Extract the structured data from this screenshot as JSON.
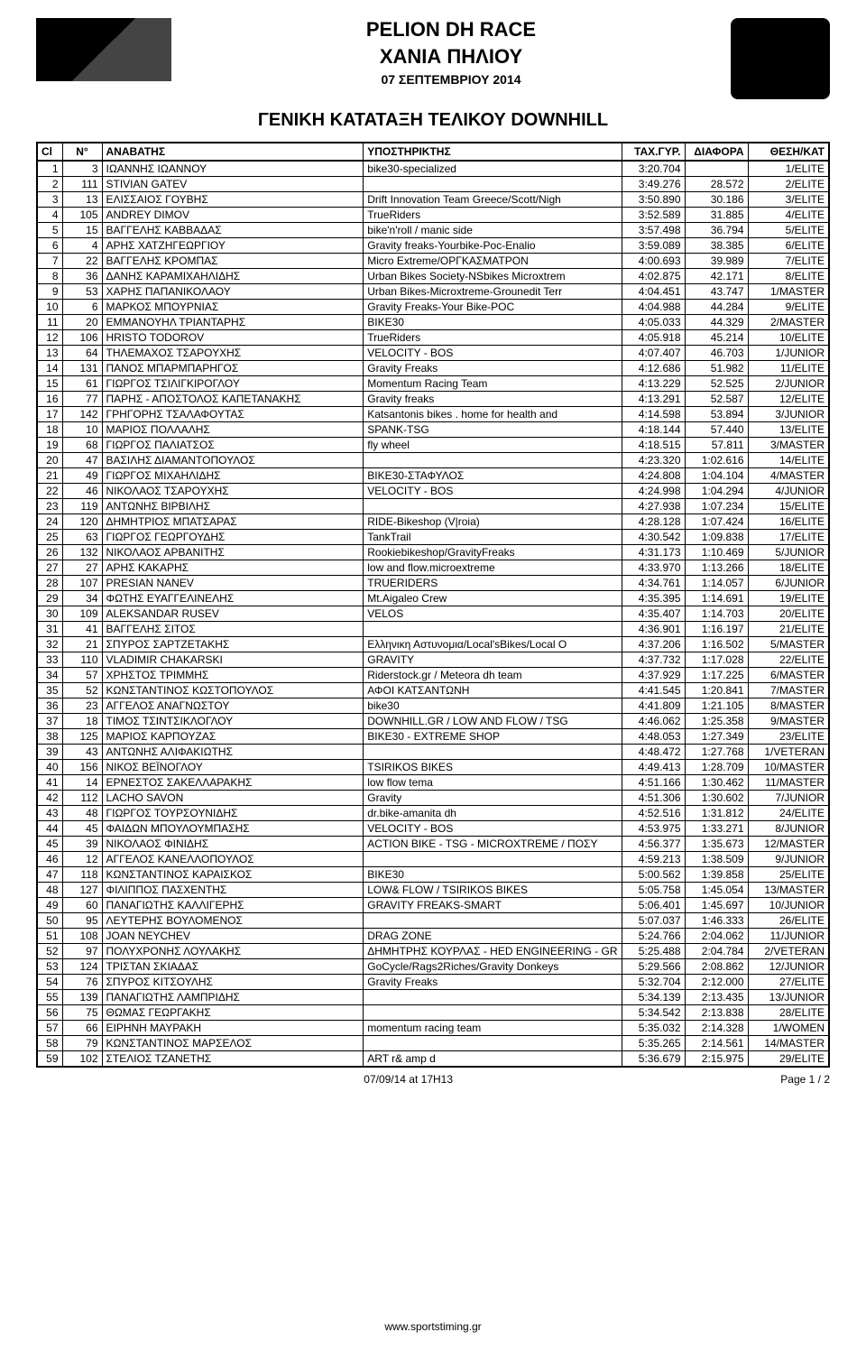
{
  "header": {
    "title1": "PELION DH RACE",
    "title2": "ΧΑΝΙΑ ΠΗΛΙΟΥ",
    "date": "07  ΣΕΠΤΕΜΒΡΙΟΥ 2014",
    "subtitle": "ΓΕΝΙΚΗ ΚΑΤΑΤΑΞΗ ΤΕΛΙΚΟΥ DOWNHILL"
  },
  "columns": {
    "cl": "Cl",
    "no": "N°",
    "rider": "ΑΝΑΒΑΤΗΣ",
    "team": "ΥΠΟΣΤΗΡΙΚΤΗΣ",
    "time": "TAX.ΓΥΡ.",
    "gap": "ΔΙΑΦΟΡΑ",
    "cat": "ΘΕΣΗ/ΚΑΤ"
  },
  "rows": [
    {
      "cl": "1",
      "no": "3",
      "rider": "ΙΩΑΝΝΗΣ ΙΩΑΝΝΟΥ",
      "team": "bike30-specialized",
      "time": "3:20.704",
      "gap": "",
      "cat": "1/ELITE"
    },
    {
      "cl": "2",
      "no": "111",
      "rider": "STIVIAN GATEV",
      "team": "",
      "time": "3:49.276",
      "gap": "28.572",
      "cat": "2/ELITE"
    },
    {
      "cl": "3",
      "no": "13",
      "rider": "ΕΛΙΣΣΑΙΟΣ ΓΟΥΒΗΣ",
      "team": "Drift Innovation Team Greece/Scott/Nigh",
      "time": "3:50.890",
      "gap": "30.186",
      "cat": "3/ELITE"
    },
    {
      "cl": "4",
      "no": "105",
      "rider": "ANDREY DIMOV",
      "team": "TrueRiders",
      "time": "3:52.589",
      "gap": "31.885",
      "cat": "4/ELITE"
    },
    {
      "cl": "5",
      "no": "15",
      "rider": "ΒΑΓΓΕΛΗΣ ΚΑΒΒΑΔΑΣ",
      "team": "bike'n'roll / manic side",
      "time": "3:57.498",
      "gap": "36.794",
      "cat": "5/ELITE"
    },
    {
      "cl": "6",
      "no": "4",
      "rider": "ΑΡΗΣ ΧΑΤΖΗΓΕΩΡΓΙΟΥ",
      "team": "Gravity freaks-Yourbike-Poc-Enalio",
      "time": "3:59.089",
      "gap": "38.385",
      "cat": "6/ELITE"
    },
    {
      "cl": "7",
      "no": "22",
      "rider": "ΒΑΓΓΕΛΗΣ ΚΡΟΜΠΑΣ",
      "team": "Micro Extreme/ΟΡΓΚΑΣΜΑΤΡΟΝ",
      "time": "4:00.693",
      "gap": "39.989",
      "cat": "7/ELITE"
    },
    {
      "cl": "8",
      "no": "36",
      "rider": "ΔΑΝΗΣ ΚΑΡΑΜΙΧΑΗΛΙΔΗΣ",
      "team": "Urban Bikes Society-NSbikes Microxtrem",
      "time": "4:02.875",
      "gap": "42.171",
      "cat": "8/ELITE"
    },
    {
      "cl": "9",
      "no": "53",
      "rider": "ΧΑΡΗΣ ΠΑΠΑΝΙΚΟΛΑΟΥ",
      "team": "Urban Bikes-Microxtreme-Grounedit Terr",
      "time": "4:04.451",
      "gap": "43.747",
      "cat": "1/MASTER"
    },
    {
      "cl": "10",
      "no": "6",
      "rider": "ΜΑΡΚΟΣ ΜΠΟΥΡΝΙΑΣ",
      "team": "Gravity Freaks-Your Bike-POC",
      "time": "4:04.988",
      "gap": "44.284",
      "cat": "9/ELITE"
    },
    {
      "cl": "11",
      "no": "20",
      "rider": "ΕΜΜΑΝΟΥΗΛ ΤΡΙΑΝΤΑΡΗΣ",
      "team": "BIKE30",
      "time": "4:05.033",
      "gap": "44.329",
      "cat": "2/MASTER"
    },
    {
      "cl": "12",
      "no": "106",
      "rider": "HRISTO TODOROV",
      "team": "TrueRiders",
      "time": "4:05.918",
      "gap": "45.214",
      "cat": "10/ELITE"
    },
    {
      "cl": "13",
      "no": "64",
      "rider": "ΤΗΛΕΜΑΧΟΣ ΤΣΑΡΟΥΧΗΣ",
      "team": "VELOCITY - BOS",
      "time": "4:07.407",
      "gap": "46.703",
      "cat": "1/JUNIOR"
    },
    {
      "cl": "14",
      "no": "131",
      "rider": "ΠΑΝΟΣ ΜΠΑΡΜΠΑΡΗΓΟΣ",
      "team": "Gravity Freaks",
      "time": "4:12.686",
      "gap": "51.982",
      "cat": "11/ELITE"
    },
    {
      "cl": "15",
      "no": "61",
      "rider": "ΓΙΩΡΓΟΣ ΤΣΙΛΙΓΚΙΡΟΓΛΟΥ",
      "team": "Momentum Racing Team",
      "time": "4:13.229",
      "gap": "52.525",
      "cat": "2/JUNIOR"
    },
    {
      "cl": "16",
      "no": "77",
      "rider": "ΠΑΡΗΣ - ΑΠΟΣΤΟΛΟΣ ΚΑΠΕΤΑΝΑΚΗΣ",
      "team": "Gravity freaks",
      "time": "4:13.291",
      "gap": "52.587",
      "cat": "12/ELITE"
    },
    {
      "cl": "17",
      "no": "142",
      "rider": "ΓΡΗΓΟΡΗΣ ΤΣΑΛΑΦΟΥΤΑΣ",
      "team": "Katsantonis bikes . home for health and",
      "time": "4:14.598",
      "gap": "53.894",
      "cat": "3/JUNIOR"
    },
    {
      "cl": "18",
      "no": "10",
      "rider": "ΜΑΡΙΟΣ ΠΟΛΛΑΛΗΣ",
      "team": "SPANK-TSG",
      "time": "4:18.144",
      "gap": "57.440",
      "cat": "13/ELITE"
    },
    {
      "cl": "19",
      "no": "68",
      "rider": "ΓΙΩΡΓΟΣ ΠΑΛΙΑΤΣΟΣ",
      "team": "fly wheel",
      "time": "4:18.515",
      "gap": "57.811",
      "cat": "3/MASTER"
    },
    {
      "cl": "20",
      "no": "47",
      "rider": "ΒΑΣΙΛΗΣ ΔΙΑΜΑΝΤΟΠΟΥΛΟΣ",
      "team": "",
      "time": "4:23.320",
      "gap": "1:02.616",
      "cat": "14/ELITE"
    },
    {
      "cl": "21",
      "no": "49",
      "rider": "ΓΙΩΡΓΟΣ ΜΙΧΑΗΛΙΔΗΣ",
      "team": "BIKE30-ΣΤΑΦΥΛΟΣ",
      "time": "4:24.808",
      "gap": "1:04.104",
      "cat": "4/MASTER"
    },
    {
      "cl": "22",
      "no": "46",
      "rider": "ΝΙΚΟΛΑΟΣ ΤΣΑΡΟΥΧΗΣ",
      "team": "VELOCITY - BOS",
      "time": "4:24.998",
      "gap": "1:04.294",
      "cat": "4/JUNIOR"
    },
    {
      "cl": "23",
      "no": "119",
      "rider": "ΑΝΤΩΝΗΣ ΒΙΡΒΙΛΗΣ",
      "team": "",
      "time": "4:27.938",
      "gap": "1:07.234",
      "cat": "15/ELITE"
    },
    {
      "cl": "24",
      "no": "120",
      "rider": "ΔΗΜΗΤΡΙΟΣ ΜΠΑΤΣΑΡΑΣ",
      "team": "RIDE-Bikeshop (V|roia)",
      "time": "4:28.128",
      "gap": "1:07.424",
      "cat": "16/ELITE"
    },
    {
      "cl": "25",
      "no": "63",
      "rider": "ΓΙΩΡΓΟΣ ΓΕΩΡΓΟΥΔΗΣ",
      "team": "TankTrail",
      "time": "4:30.542",
      "gap": "1:09.838",
      "cat": "17/ELITE"
    },
    {
      "cl": "26",
      "no": "132",
      "rider": "ΝΙΚΟΛΑΟΣ ΑΡΒΑΝΙΤΗΣ",
      "team": "Rookiebikeshop/GravityFreaks",
      "time": "4:31.173",
      "gap": "1:10.469",
      "cat": "5/JUNIOR"
    },
    {
      "cl": "27",
      "no": "27",
      "rider": "ΑΡΗΣ ΚΑΚΑΡΗΣ",
      "team": "low and flow.microextreme",
      "time": "4:33.970",
      "gap": "1:13.266",
      "cat": "18/ELITE"
    },
    {
      "cl": "28",
      "no": "107",
      "rider": "PRESIAN NANEV",
      "team": "TRUERIDERS",
      "time": "4:34.761",
      "gap": "1:14.057",
      "cat": "6/JUNIOR"
    },
    {
      "cl": "29",
      "no": "34",
      "rider": "ΦΩΤΗΣ ΕΥΑΓΓΕΛΙΝΕΛΗΣ",
      "team": "Mt.Aigaleo Crew",
      "time": "4:35.395",
      "gap": "1:14.691",
      "cat": "19/ELITE"
    },
    {
      "cl": "30",
      "no": "109",
      "rider": "ALEKSANDAR RUSEV",
      "team": "VELOS",
      "time": "4:35.407",
      "gap": "1:14.703",
      "cat": "20/ELITE"
    },
    {
      "cl": "31",
      "no": "41",
      "rider": "ΒΑΓΓΕΛΗΣ ΣΙΤΟΣ",
      "team": "",
      "time": "4:36.901",
      "gap": "1:16.197",
      "cat": "21/ELITE"
    },
    {
      "cl": "32",
      "no": "21",
      "rider": "ΣΠΥΡΟΣ ΣΑΡΤΖΕΤΑΚΗΣ",
      "team": "Ελληνικη Αστυνομια/Local'sBikes/Local O",
      "time": "4:37.206",
      "gap": "1:16.502",
      "cat": "5/MASTER"
    },
    {
      "cl": "33",
      "no": "110",
      "rider": "VLADIMIR CHAKARSKI",
      "team": "GRAVITY",
      "time": "4:37.732",
      "gap": "1:17.028",
      "cat": "22/ELITE"
    },
    {
      "cl": "34",
      "no": "57",
      "rider": "ΧΡΗΣΤΟΣ ΤΡΙΜΜΗΣ",
      "team": "Riderstock.gr / Meteora dh team",
      "time": "4:37.929",
      "gap": "1:17.225",
      "cat": "6/MASTER"
    },
    {
      "cl": "35",
      "no": "52",
      "rider": "ΚΩΝΣΤΑΝΤΙΝΟΣ ΚΩΣΤΟΠΟΥΛΟΣ",
      "team": "ΑΦΟΙ ΚΑΤΣΑΝΤΩΝΗ",
      "time": "4:41.545",
      "gap": "1:20.841",
      "cat": "7/MASTER"
    },
    {
      "cl": "36",
      "no": "23",
      "rider": "ΑΓΓΕΛΟΣ ΑΝΑΓΝΩΣΤΟΥ",
      "team": "bike30",
      "time": "4:41.809",
      "gap": "1:21.105",
      "cat": "8/MASTER"
    },
    {
      "cl": "37",
      "no": "18",
      "rider": "ΤΙΜΟΣ ΤΣΙΝΤΣΙΚΛΟΓΛΟΥ",
      "team": "DOWNHILL.GR / LOW AND FLOW / TSG",
      "time": "4:46.062",
      "gap": "1:25.358",
      "cat": "9/MASTER"
    },
    {
      "cl": "38",
      "no": "125",
      "rider": "ΜΑΡΙΟΣ ΚΑΡΠΟΥΖΑΣ",
      "team": "BIKE30 - EXTREME SHOP",
      "time": "4:48.053",
      "gap": "1:27.349",
      "cat": "23/ELITE"
    },
    {
      "cl": "39",
      "no": "43",
      "rider": "ΑΝΤΩΝΗΣ ΑΛΙΦΑΚΙΩΤΗΣ",
      "team": "",
      "time": "4:48.472",
      "gap": "1:27.768",
      "cat": "1/VETERAN"
    },
    {
      "cl": "40",
      "no": "156",
      "rider": "ΝΙΚΟΣ ΒΕΪΝΟΓΛΟΥ",
      "team": "TSIRIKOS BIKES",
      "time": "4:49.413",
      "gap": "1:28.709",
      "cat": "10/MASTER"
    },
    {
      "cl": "41",
      "no": "14",
      "rider": "ΕΡΝΕΣΤΟΣ ΣΑΚΕΛΛΑΡΑΚΗΣ",
      "team": "low flow tema",
      "time": "4:51.166",
      "gap": "1:30.462",
      "cat": "11/MASTER"
    },
    {
      "cl": "42",
      "no": "112",
      "rider": "LACHO SAVON",
      "team": "Gravity",
      "time": "4:51.306",
      "gap": "1:30.602",
      "cat": "7/JUNIOR"
    },
    {
      "cl": "43",
      "no": "48",
      "rider": "ΓΙΩΡΓΟΣ ΤΟΥΡΣΟΥΝΙΔΗΣ",
      "team": "dr.bike-amanita dh",
      "time": "4:52.516",
      "gap": "1:31.812",
      "cat": "24/ELITE"
    },
    {
      "cl": "44",
      "no": "45",
      "rider": "ΦΑΙΔΩΝ ΜΠΟΥΛΟΥΜΠΑΣΗΣ",
      "team": "VELOCITY - BOS",
      "time": "4:53.975",
      "gap": "1:33.271",
      "cat": "8/JUNIOR"
    },
    {
      "cl": "45",
      "no": "39",
      "rider": "ΝΙΚΟΛΑΟΣ ΦΙΝΙΔΗΣ",
      "team": "ACTION BIKE - TSG - MICROXTREME / ΠΟΣΥ",
      "time": "4:56.377",
      "gap": "1:35.673",
      "cat": "12/MASTER"
    },
    {
      "cl": "46",
      "no": "12",
      "rider": "ΑΓΓΕΛΟΣ ΚΑΝΕΛΛΟΠΟΥΛΟΣ",
      "team": "",
      "time": "4:59.213",
      "gap": "1:38.509",
      "cat": "9/JUNIOR"
    },
    {
      "cl": "47",
      "no": "118",
      "rider": "ΚΩΝΣΤΑΝΤΙΝΟΣ ΚΑΡΑΙΣΚΟΣ",
      "team": "BIKE30",
      "time": "5:00.562",
      "gap": "1:39.858",
      "cat": "25/ELITE"
    },
    {
      "cl": "48",
      "no": "127",
      "rider": "ΦΙΛΙΠΠΟΣ ΠΑΣΧΕΝΤΗΣ",
      "team": "LOW&amp FLOW / TSIRIKOS BIKES",
      "time": "5:05.758",
      "gap": "1:45.054",
      "cat": "13/MASTER"
    },
    {
      "cl": "49",
      "no": "60",
      "rider": "ΠΑΝΑΓΙΩΤΗΣ ΚΑΛΛΙΓΕΡΗΣ",
      "team": "GRAVITY FREAKS-SMART",
      "time": "5:06.401",
      "gap": "1:45.697",
      "cat": "10/JUNIOR"
    },
    {
      "cl": "50",
      "no": "95",
      "rider": "ΛΕΥΤΕΡΗΣ ΒΟΥΛΟΜΕΝΟΣ",
      "team": "",
      "time": "5:07.037",
      "gap": "1:46.333",
      "cat": "26/ELITE"
    },
    {
      "cl": "51",
      "no": "108",
      "rider": "JOAN NEYCHEV",
      "team": "DRAG ZONE",
      "time": "5:24.766",
      "gap": "2:04.062",
      "cat": "11/JUNIOR"
    },
    {
      "cl": "52",
      "no": "97",
      "rider": "ΠΟΛΥΧΡΟΝΗΣ ΛΟΥΛΑΚΗΣ",
      "team": "ΔΗΜΗΤΡΗΣ ΚΟΥΡΛΑΣ - HED ENGINEERING - GR",
      "time": "5:25.488",
      "gap": "2:04.784",
      "cat": "2/VETERAN"
    },
    {
      "cl": "53",
      "no": "124",
      "rider": "ΤΡΙΣΤΑΝ ΣΚΙΑΔΑΣ",
      "team": "GoCycle/Rags2Riches/Gravity Donkeys",
      "time": "5:29.566",
      "gap": "2:08.862",
      "cat": "12/JUNIOR"
    },
    {
      "cl": "54",
      "no": "76",
      "rider": "ΣΠΥΡΟΣ ΚΙΤΣΟΥΛΗΣ",
      "team": "Gravity Freaks",
      "time": "5:32.704",
      "gap": "2:12.000",
      "cat": "27/ELITE"
    },
    {
      "cl": "55",
      "no": "139",
      "rider": "ΠΑΝΑΓΙΩΤΗΣ ΛΑΜΠΡΙΔΗΣ",
      "team": "",
      "time": "5:34.139",
      "gap": "2:13.435",
      "cat": "13/JUNIOR"
    },
    {
      "cl": "56",
      "no": "75",
      "rider": "ΘΩΜΑΣ ΓΕΩΡΓΑΚΗΣ",
      "team": "",
      "time": "5:34.542",
      "gap": "2:13.838",
      "cat": "28/ELITE"
    },
    {
      "cl": "57",
      "no": "66",
      "rider": "ΕΙΡΗΝΗ ΜΑΥΡΑΚΗ",
      "team": "momentum racing team",
      "time": "5:35.032",
      "gap": "2:14.328",
      "cat": "1/WOMEN"
    },
    {
      "cl": "58",
      "no": "79",
      "rider": "ΚΩΝΣΤΑΝΤΙΝΟΣ ΜΑΡΣΕΛΟΣ",
      "team": "",
      "time": "5:35.265",
      "gap": "2:14.561",
      "cat": "14/MASTER"
    },
    {
      "cl": "59",
      "no": "102",
      "rider": "ΣΤΕΛΙΟΣ ΤΖΑΝΕΤΗΣ",
      "team": "ART r& amp d",
      "time": "5:36.679",
      "gap": "2:15.975",
      "cat": "29/ELITE"
    }
  ],
  "footer": {
    "timestamp": "07/09/14 at 17H13",
    "page": "Page 1 / 2",
    "site": "www.sportstiming.gr"
  },
  "style": {
    "border_color": "#000000",
    "bg_color": "#ffffff",
    "text_color": "#000000",
    "font_size_body": 12,
    "font_size_title": 22
  }
}
